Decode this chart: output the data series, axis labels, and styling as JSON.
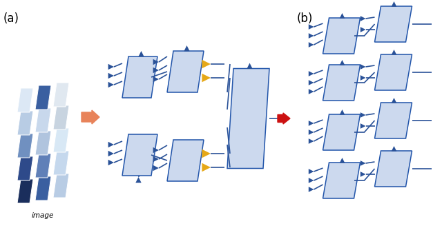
{
  "bg_color": "#ffffff",
  "panel_color": "#ccd9ee",
  "panel_edge_color": "#2255aa",
  "tri_blue_color": "#2a5298",
  "tri_orange_color": "#e6a817",
  "arrow_orange_color": "#e8835a",
  "arrow_red_color": "#cc1111",
  "line_color": "#2a5298",
  "label_a": "(a)",
  "label_b": "(b)",
  "image_label": "image",
  "image_cols": [
    [
      "#1a2e5c",
      "#2e4a8a",
      "#7090c0",
      "#b8cce4",
      "#dce8f5"
    ],
    [
      "#3a5fa0",
      "#6080b8",
      "#b0c4de",
      "#c8d8ec",
      "#3a5fa0"
    ],
    [
      "#b8cce4",
      "#c5d8ed",
      "#d8e8f5",
      "#c8d4e0",
      "#e0e8f0"
    ]
  ]
}
